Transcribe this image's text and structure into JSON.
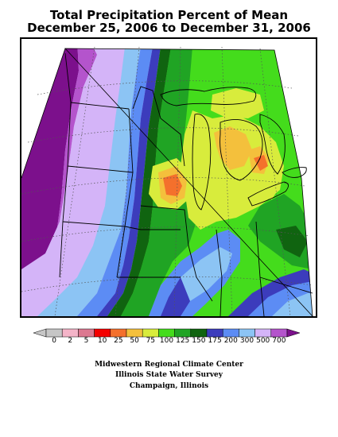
{
  "title": {
    "line1": "Total Precipitation Percent of Mean",
    "line2": "December 25, 2006 to December 31, 2006"
  },
  "legend": {
    "bins": [
      {
        "label": "0",
        "color": "#c6c6c6"
      },
      {
        "label": "2",
        "color": "#f4b4c8"
      },
      {
        "label": "5",
        "color": "#dc7890"
      },
      {
        "label": "10",
        "color": "#f40000"
      },
      {
        "label": "25",
        "color": "#f4702c"
      },
      {
        "label": "50",
        "color": "#f4c03c"
      },
      {
        "label": "75",
        "color": "#d8ec3c"
      },
      {
        "label": "100",
        "color": "#44dc1c"
      },
      {
        "label": "125",
        "color": "#20a424"
      },
      {
        "label": "150",
        "color": "#106410"
      },
      {
        "label": "175",
        "color": "#3c3cbc"
      },
      {
        "label": "200",
        "color": "#5c8cf4"
      },
      {
        "label": "300",
        "color": "#8cc4f4"
      },
      {
        "label": "500",
        "color": "#d4b4f8"
      },
      {
        "label": "700",
        "color": "#b454cc"
      }
    ],
    "over_color": "#7c108c"
  },
  "credits": {
    "line1": "Midwestern Regional Climate Center",
    "line2": "Illinois State Water Survey",
    "line3": "Champaign, Illinois"
  }
}
